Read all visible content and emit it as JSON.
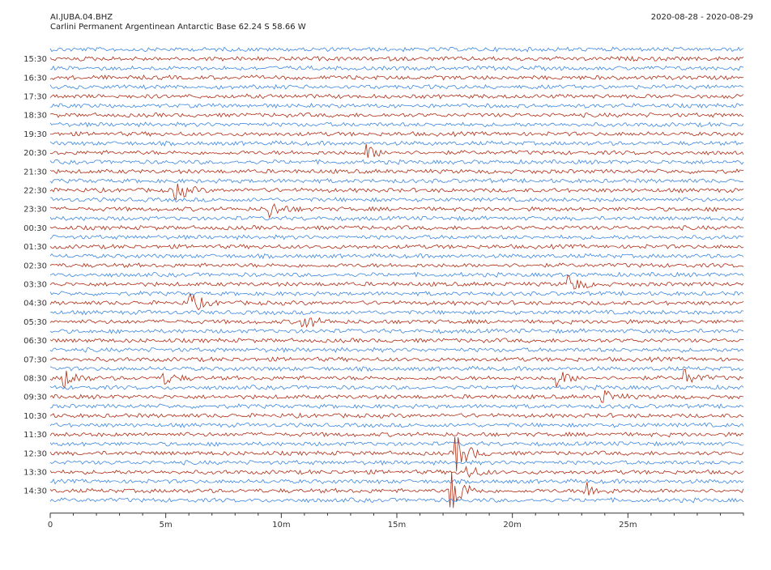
{
  "header": {
    "station": "AI.JUBA.04.BHZ",
    "location": "Carlini Permanent Argentinean Antarctic Base  62.24 S 58.66 W",
    "date_range": "2020-08-28 - 2020-08-29"
  },
  "chart_data": {
    "type": "line",
    "title": "",
    "xlabel": "",
    "ylabel": "",
    "x_unit": "minutes",
    "xlim": [
      0,
      30
    ],
    "x_ticks": [
      {
        "value": 0,
        "label": "0"
      },
      {
        "value": 5,
        "label": "5m"
      },
      {
        "value": 10,
        "label": "10m"
      },
      {
        "value": 15,
        "label": "15m"
      },
      {
        "value": 20,
        "label": "20m"
      },
      {
        "value": 25,
        "label": "25m"
      }
    ],
    "y_labels": [
      "15:30",
      "16:30",
      "17:30",
      "18:30",
      "19:30",
      "20:30",
      "21:30",
      "22:30",
      "23:30",
      "00:30",
      "01:30",
      "02:30",
      "03:30",
      "04:30",
      "05:30",
      "06:30",
      "07:30",
      "08:30",
      "09:30",
      "10:30",
      "11:30",
      "12:30",
      "13:30",
      "14:30"
    ],
    "traces_per_hour": 2,
    "trace_colors": [
      "#3a86e0",
      "#b02a10"
    ],
    "grid": false,
    "legend": "none",
    "events": [
      {
        "label": "14:30",
        "minute": 17.3,
        "amplitude": 3.0
      },
      {
        "label": "13:30",
        "minute": 17.9,
        "amplitude": 1.0
      },
      {
        "label": "12:30",
        "minute": 17.5,
        "amplitude": 2.5
      },
      {
        "label": "14:30",
        "minute": 23.1,
        "amplitude": 1.2
      },
      {
        "label": "20:30",
        "minute": 13.6,
        "amplitude": 1.0
      },
      {
        "label": "22:30",
        "minute": 5.4,
        "amplitude": 1.2
      },
      {
        "label": "23:30",
        "minute": 9.4,
        "amplitude": 1.2
      },
      {
        "label": "08:30",
        "minute": 0.6,
        "amplitude": 1.2
      },
      {
        "label": "08:30",
        "minute": 4.9,
        "amplitude": 0.8
      },
      {
        "label": "04:30",
        "minute": 6.0,
        "amplitude": 1.3
      },
      {
        "label": "05:30",
        "minute": 10.9,
        "amplitude": 1.0
      },
      {
        "label": "03:30",
        "minute": 22.4,
        "amplitude": 1.2
      },
      {
        "label": "08:30",
        "minute": 21.9,
        "amplitude": 1.0
      },
      {
        "label": "08:30",
        "minute": 27.4,
        "amplitude": 1.0
      },
      {
        "label": "09:30",
        "minute": 23.9,
        "amplitude": 0.8
      }
    ]
  }
}
